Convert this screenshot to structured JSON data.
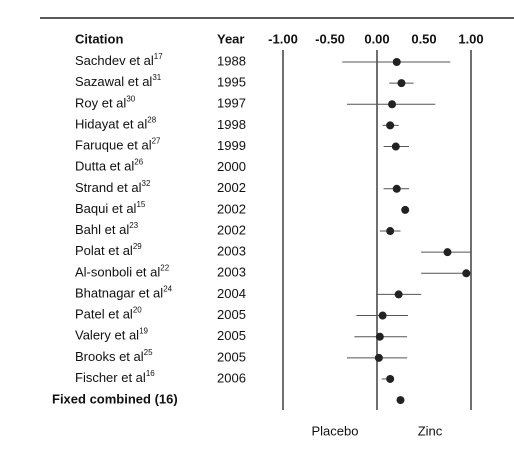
{
  "chart_data": {
    "type": "forest",
    "column_headers": {
      "citation": "Citation",
      "year": "Year"
    },
    "xlim": [
      -1,
      1
    ],
    "xticks": [
      {
        "value": -1,
        "label": "-1.00"
      },
      {
        "value": -0.5,
        "label": "-0.50"
      },
      {
        "value": 0,
        "label": "0.00"
      },
      {
        "value": 0.5,
        "label": "0.50"
      },
      {
        "value": 1,
        "label": "1.00"
      }
    ],
    "reference_lines": [
      -1,
      0,
      1
    ],
    "rows": [
      {
        "citation": "Sachdev et al",
        "ref": "17",
        "year": 1988,
        "estimate": 0.21,
        "lower": -0.37,
        "upper": 0.78
      },
      {
        "citation": "Sazawal et al",
        "ref": "31",
        "year": 1995,
        "estimate": 0.26,
        "lower": 0.13,
        "upper": 0.39
      },
      {
        "citation": "Roy et al",
        "ref": "30",
        "year": 1997,
        "estimate": 0.16,
        "lower": -0.32,
        "upper": 0.62
      },
      {
        "citation": "Hidayat et al",
        "ref": "28",
        "year": 1998,
        "estimate": 0.14,
        "lower": 0.06,
        "upper": 0.23
      },
      {
        "citation": "Faruque et al",
        "ref": "27",
        "year": 1999,
        "estimate": 0.2,
        "lower": 0.07,
        "upper": 0.34
      },
      {
        "citation": "Dutta et al",
        "ref": "26",
        "year": 2000,
        "estimate": null,
        "lower": null,
        "upper": null
      },
      {
        "citation": "Strand et al",
        "ref": "32",
        "year": 2002,
        "estimate": 0.21,
        "lower": 0.07,
        "upper": 0.34
      },
      {
        "citation": "Baqui et al",
        "ref": "15",
        "year": 2002,
        "estimate": 0.3,
        "lower": null,
        "upper": null
      },
      {
        "citation": "Bahl et al",
        "ref": "23",
        "year": 2002,
        "estimate": 0.14,
        "lower": 0.03,
        "upper": 0.25
      },
      {
        "citation": "Polat et al",
        "ref": "29",
        "year": 2003,
        "estimate": 0.75,
        "lower": 0.47,
        "upper": 1.0
      },
      {
        "citation": "Al-sonboli et al",
        "ref": "22",
        "year": 2003,
        "estimate": 0.95,
        "lower": 0.47,
        "upper": 1.0
      },
      {
        "citation": "Bhatnagar et al",
        "ref": "24",
        "year": 2004,
        "estimate": 0.23,
        "lower": -0.01,
        "upper": 0.47
      },
      {
        "citation": "Patel et al",
        "ref": "20",
        "year": 2005,
        "estimate": 0.06,
        "lower": -0.22,
        "upper": 0.33
      },
      {
        "citation": "Valery et al",
        "ref": "19",
        "year": 2005,
        "estimate": 0.03,
        "lower": -0.24,
        "upper": 0.32
      },
      {
        "citation": "Brooks et al",
        "ref": "25",
        "year": 2005,
        "estimate": 0.02,
        "lower": -0.32,
        "upper": 0.32
      },
      {
        "citation": "Fischer et al",
        "ref": "16",
        "year": 2006,
        "estimate": 0.14,
        "lower": 0.05,
        "upper": 0.18
      }
    ],
    "summary": {
      "label": "Fixed combined (16)",
      "estimate": 0.25
    },
    "favors": {
      "left": "Placebo",
      "right": "Zinc"
    },
    "color": "#222222"
  }
}
